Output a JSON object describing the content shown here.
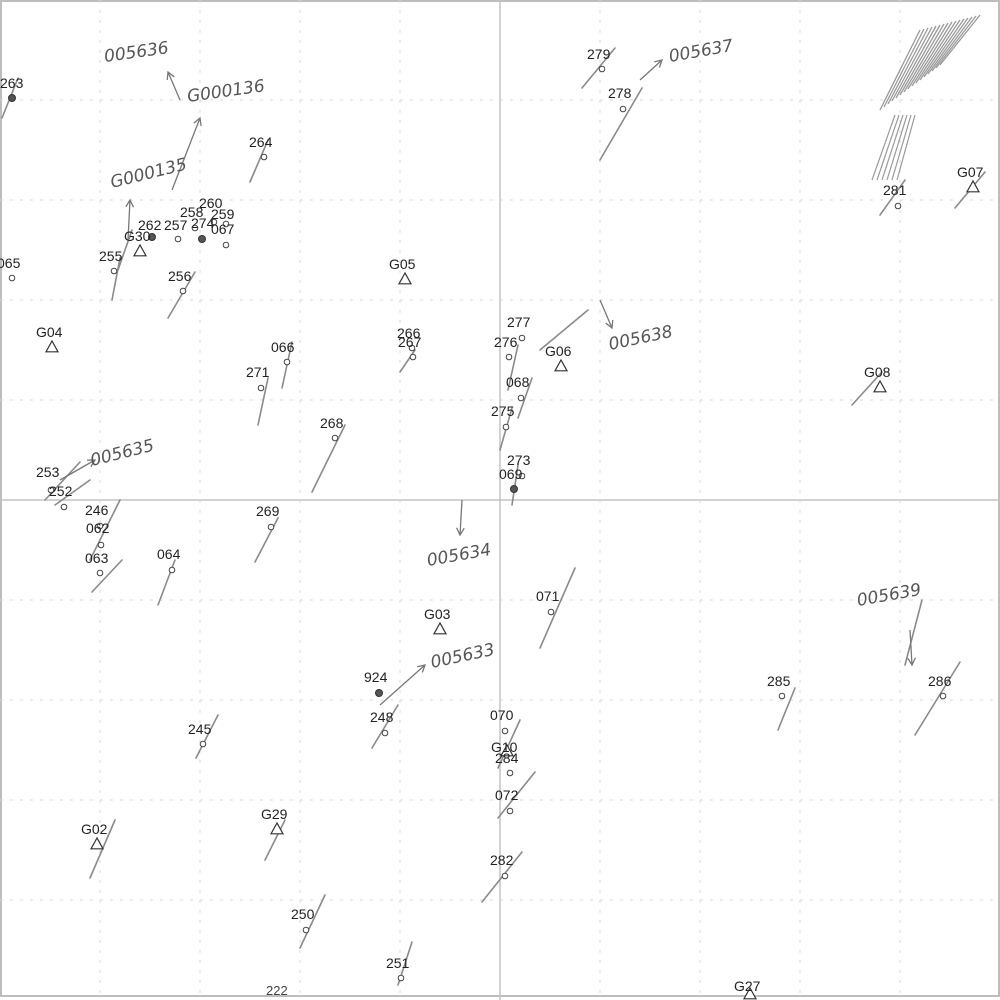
{
  "map": {
    "points": [
      {
        "label": "263",
        "kind": "filled"
      },
      {
        "label": "264",
        "kind": "open"
      },
      {
        "label": "260",
        "kind": "open"
      },
      {
        "label": "258",
        "kind": "open"
      },
      {
        "label": "259",
        "kind": "open"
      },
      {
        "label": "274",
        "kind": "filled"
      },
      {
        "label": "262",
        "kind": "filled"
      },
      {
        "label": "257",
        "kind": "open"
      },
      {
        "label": "067",
        "kind": "open"
      },
      {
        "label": "G30",
        "kind": "triangle"
      },
      {
        "label": "255",
        "kind": "open"
      },
      {
        "label": "256",
        "kind": "open"
      },
      {
        "label": "065",
        "kind": "open"
      },
      {
        "label": "G04",
        "kind": "triangle"
      },
      {
        "label": "066",
        "kind": "open"
      },
      {
        "label": "271",
        "kind": "open"
      },
      {
        "label": "G05",
        "kind": "triangle"
      },
      {
        "label": "266",
        "kind": "open"
      },
      {
        "label": "267",
        "kind": "open"
      },
      {
        "label": "268",
        "kind": "open"
      },
      {
        "label": "277",
        "kind": "open"
      },
      {
        "label": "276",
        "kind": "open"
      },
      {
        "label": "068",
        "kind": "open"
      },
      {
        "label": "275",
        "kind": "open"
      },
      {
        "label": "273",
        "kind": "open"
      },
      {
        "label": "069",
        "kind": "filled"
      },
      {
        "label": "G06",
        "kind": "triangle"
      },
      {
        "label": "279",
        "kind": "open"
      },
      {
        "label": "278",
        "kind": "open"
      },
      {
        "label": "281",
        "kind": "open"
      },
      {
        "label": "G07",
        "kind": "triangle"
      },
      {
        "label": "G08",
        "kind": "triangle"
      },
      {
        "label": "253",
        "kind": "open"
      },
      {
        "label": "252",
        "kind": "open"
      },
      {
        "label": "246",
        "kind": "open"
      },
      {
        "label": "062",
        "kind": "open"
      },
      {
        "label": "063",
        "kind": "open"
      },
      {
        "label": "064",
        "kind": "open"
      },
      {
        "label": "269",
        "kind": "open"
      },
      {
        "label": "071",
        "kind": "open"
      },
      {
        "label": "G03",
        "kind": "triangle"
      },
      {
        "label": "924",
        "kind": "filled"
      },
      {
        "label": "248",
        "kind": "open"
      },
      {
        "label": "070",
        "kind": "open"
      },
      {
        "label": "G10",
        "kind": "triangle"
      },
      {
        "label": "284",
        "kind": "open"
      },
      {
        "label": "072",
        "kind": "open"
      },
      {
        "label": "285",
        "kind": "open"
      },
      {
        "label": "286",
        "kind": "open"
      },
      {
        "label": "245",
        "kind": "open"
      },
      {
        "label": "G29",
        "kind": "triangle"
      },
      {
        "label": "G02",
        "kind": "triangle"
      },
      {
        "label": "282",
        "kind": "open"
      },
      {
        "label": "250",
        "kind": "open"
      },
      {
        "label": "251",
        "kind": "open"
      },
      {
        "label": "G27",
        "kind": "triangle"
      }
    ],
    "edge_labels": [
      "222"
    ],
    "annotations": [
      "005636",
      "G000136",
      "G000135",
      "005637",
      "005638",
      "005635",
      "005634",
      "005633",
      "005639"
    ]
  }
}
